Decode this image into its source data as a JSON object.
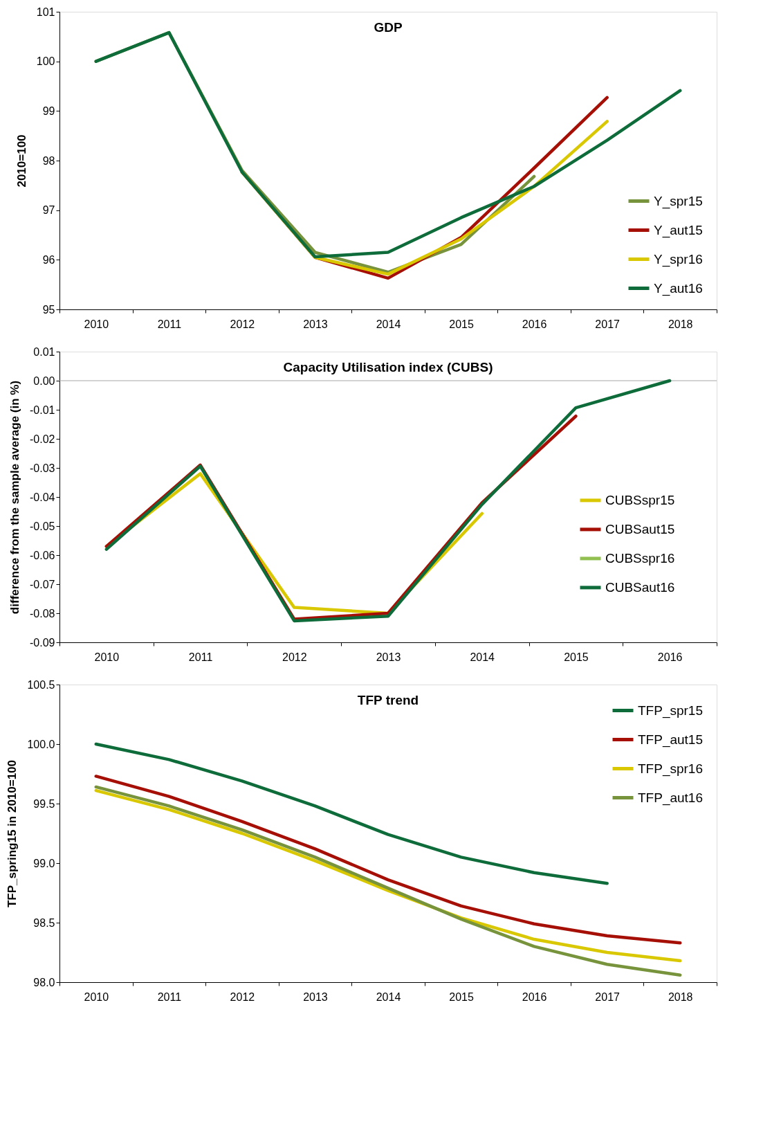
{
  "chart_data": [
    {
      "type": "line",
      "title": "GDP",
      "ylabel": "2010=100",
      "categories": [
        "2010",
        "2011",
        "2012",
        "2013",
        "2014",
        "2015",
        "2016",
        "2017",
        "2018"
      ],
      "ylim": [
        95,
        101
      ],
      "yticks": [
        95,
        96,
        97,
        98,
        99,
        100,
        101
      ],
      "grid": false,
      "legend": "bottom right",
      "marker": "none",
      "line_style": "solid",
      "series": [
        {
          "name": "Y_spr15",
          "color": "#77933c",
          "values": [
            100,
            100.58,
            97.8,
            96.15,
            95.75,
            96.31,
            97.68,
            null,
            null
          ]
        },
        {
          "name": "Y_aut15",
          "color": "#a50f05",
          "values": [
            null,
            null,
            97.77,
            96.05,
            95.63,
            96.45,
            97.85,
            99.27,
            null
          ]
        },
        {
          "name": "Y_spr16",
          "color": "#d9c800",
          "values": [
            null,
            null,
            97.77,
            96.05,
            95.71,
            96.42,
            97.48,
            98.79,
            null
          ]
        },
        {
          "name": "Y_aut16",
          "color": "#0e6b3a",
          "values": [
            100,
            100.58,
            97.77,
            96.06,
            96.15,
            96.85,
            97.48,
            98.41,
            99.41
          ]
        }
      ]
    },
    {
      "type": "line",
      "title": "Capacity Utilisation index (CUBS)",
      "ylabel": "difference from the sample average (in %)",
      "categories": [
        "2010",
        "2011",
        "2012",
        "2013",
        "2014",
        "2015",
        "2016"
      ],
      "ylim": [
        -0.09,
        0.01
      ],
      "yticks": [
        {
          "value": -0.09,
          "label": "-0.09"
        },
        {
          "value": -0.08,
          "label": "-0.08"
        },
        {
          "value": -0.07,
          "label": "-0.07"
        },
        {
          "value": -0.06,
          "label": "-0.06"
        },
        {
          "value": -0.05,
          "label": "-0.05"
        },
        {
          "value": -0.04,
          "label": "-0.04"
        },
        {
          "value": -0.03,
          "label": "-0.03"
        },
        {
          "value": -0.02,
          "label": "-0.02"
        },
        {
          "value": -0.01,
          "label": "-0.01"
        },
        {
          "value": 0,
          "label": "0.00"
        },
        {
          "value": 0.01,
          "label": "0.01"
        }
      ],
      "grid": false,
      "legend": "right",
      "marker": "none",
      "line_style": "solid",
      "ref_lines": [
        {
          "axis": "y",
          "value": 0,
          "color": "#a6a6a6"
        }
      ],
      "series": [
        {
          "name": "CUBSspr15",
          "color": "#d9c800",
          "values": [
            -0.057,
            -0.032,
            -0.078,
            -0.08,
            -0.0457,
            null,
            null
          ]
        },
        {
          "name": "CUBSaut15",
          "color": "#a50f05",
          "values": [
            -0.057,
            -0.029,
            -0.082,
            -0.08,
            -0.042,
            -0.0122,
            null
          ]
        },
        {
          "name": "CUBSspr16",
          "color": "#92c050",
          "values": [
            null,
            null,
            null,
            null,
            null,
            null,
            null
          ]
        },
        {
          "name": "CUBSaut16",
          "color": "#0e6b3a",
          "values": [
            -0.058,
            -0.0294,
            -0.0826,
            -0.081,
            -0.0426,
            -0.0093,
            0
          ]
        }
      ]
    },
    {
      "type": "line",
      "title": "TFP trend",
      "ylabel": "TFP_spring15 in 2010=100",
      "categories": [
        "2010",
        "2011",
        "2012",
        "2013",
        "2014",
        "2015",
        "2016",
        "2017",
        "2018"
      ],
      "ylim": [
        98,
        100.5
      ],
      "yticks": [
        {
          "value": 98,
          "label": "98.0"
        },
        {
          "value": 98.5,
          "label": "98.5"
        },
        {
          "value": 99,
          "label": "99.0"
        },
        {
          "value": 99.5,
          "label": "99.5"
        },
        {
          "value": 100,
          "label": "100.0"
        },
        {
          "value": 100.5,
          "label": "100.5"
        }
      ],
      "grid": false,
      "legend": "top right",
      "marker": "none",
      "line_style": "solid",
      "series": [
        {
          "name": "TFP_spr15",
          "color": "#0e6b3a",
          "values": [
            100.0,
            99.87,
            99.69,
            99.48,
            99.24,
            99.05,
            98.92,
            98.83,
            null
          ]
        },
        {
          "name": "TFP_aut15",
          "color": "#a50f05",
          "values": [
            99.73,
            99.56,
            99.35,
            99.12,
            98.86,
            98.64,
            98.49,
            98.39,
            98.33
          ]
        },
        {
          "name": "TFP_spr16",
          "color": "#d9c800",
          "values": [
            99.61,
            99.45,
            99.25,
            99.02,
            98.77,
            98.54,
            98.36,
            98.25,
            98.18
          ]
        },
        {
          "name": "TFP_aut16",
          "color": "#77933c",
          "values": [
            99.64,
            99.48,
            99.28,
            99.05,
            98.79,
            98.53,
            98.3,
            98.15,
            98.06
          ]
        }
      ]
    }
  ]
}
